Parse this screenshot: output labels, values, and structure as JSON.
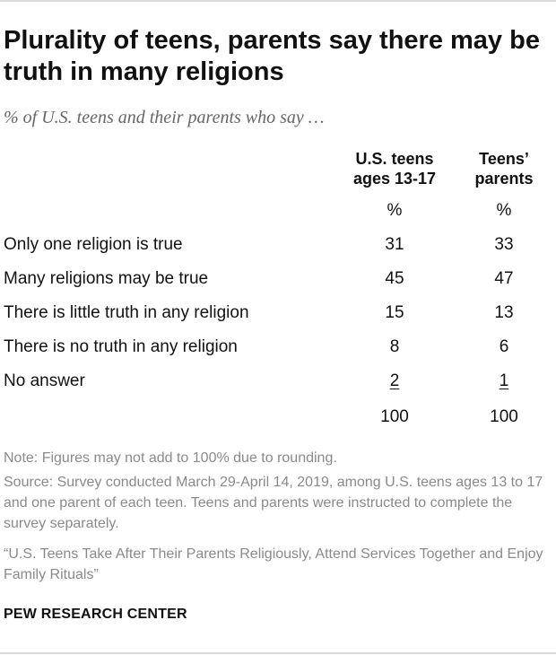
{
  "title": "Plurality of teens, parents say there may be truth in many religions",
  "subtitle": "% of U.S. teens and their parents who say …",
  "chart_data": {
    "type": "table",
    "columns": [
      {
        "header_line1": "U.S. teens",
        "header_line2": "ages 13-17",
        "unit": "%"
      },
      {
        "header_line1": "Teens’",
        "header_line2": "parents",
        "unit": "%"
      }
    ],
    "rows": [
      {
        "label": "Only one religion is true",
        "values": [
          "31",
          "33"
        ]
      },
      {
        "label": "Many religions may be true",
        "values": [
          "45",
          "47"
        ]
      },
      {
        "label": "There is little truth in any religion",
        "values": [
          "15",
          "13"
        ]
      },
      {
        "label": "There is no truth in any religion",
        "values": [
          "8",
          "6"
        ]
      },
      {
        "label": "No answer",
        "values": [
          "2",
          "1"
        ]
      }
    ],
    "totals": [
      "100",
      "100"
    ]
  },
  "notes": {
    "note": "Note: Figures may not add to 100% due to rounding.",
    "source": "Source: Survey conducted March 29-April 14, 2019, among U.S. teens ages 13 to 17 and one parent of each teen. Teens and parents were instructed to complete the survey separately.",
    "report": "“U.S. Teens Take After Their Parents Religiously, Attend Services Together and Enjoy Family Rituals”"
  },
  "brand": "PEW RESEARCH CENTER"
}
